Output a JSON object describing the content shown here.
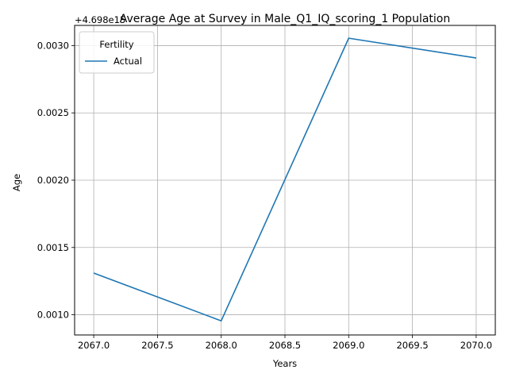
{
  "chart_data": {
    "type": "line",
    "title": "Average Age at Survey in Male_Q1_IQ_scoring_1 Population",
    "xlabel": "Years",
    "ylabel": "Age",
    "offset_label": "+4.698e15",
    "x_ticks": [
      "2067.0",
      "2067.5",
      "2068.0",
      "2068.5",
      "2069.0",
      "2069.5",
      "2070.0"
    ],
    "x_tick_values": [
      2067.0,
      2067.5,
      2068.0,
      2068.5,
      2069.0,
      2069.5,
      2070.0
    ],
    "y_ticks": [
      "0.0010",
      "0.0015",
      "0.0020",
      "0.0025",
      "0.0030"
    ],
    "y_tick_values": [
      0.001,
      0.0015,
      0.002,
      0.0025,
      0.003
    ],
    "xlim": [
      2066.85,
      2070.15
    ],
    "ylim": [
      0.00085,
      0.00315
    ],
    "grid": true,
    "legend": {
      "title": "Fertility",
      "placement": "top-left"
    },
    "series": [
      {
        "name": "Actual",
        "color": "#1f77b4",
        "x": [
          2067,
          2068,
          2069,
          2070
        ],
        "y": [
          0.00131,
          0.000955,
          0.003055,
          0.002908
        ]
      }
    ]
  }
}
